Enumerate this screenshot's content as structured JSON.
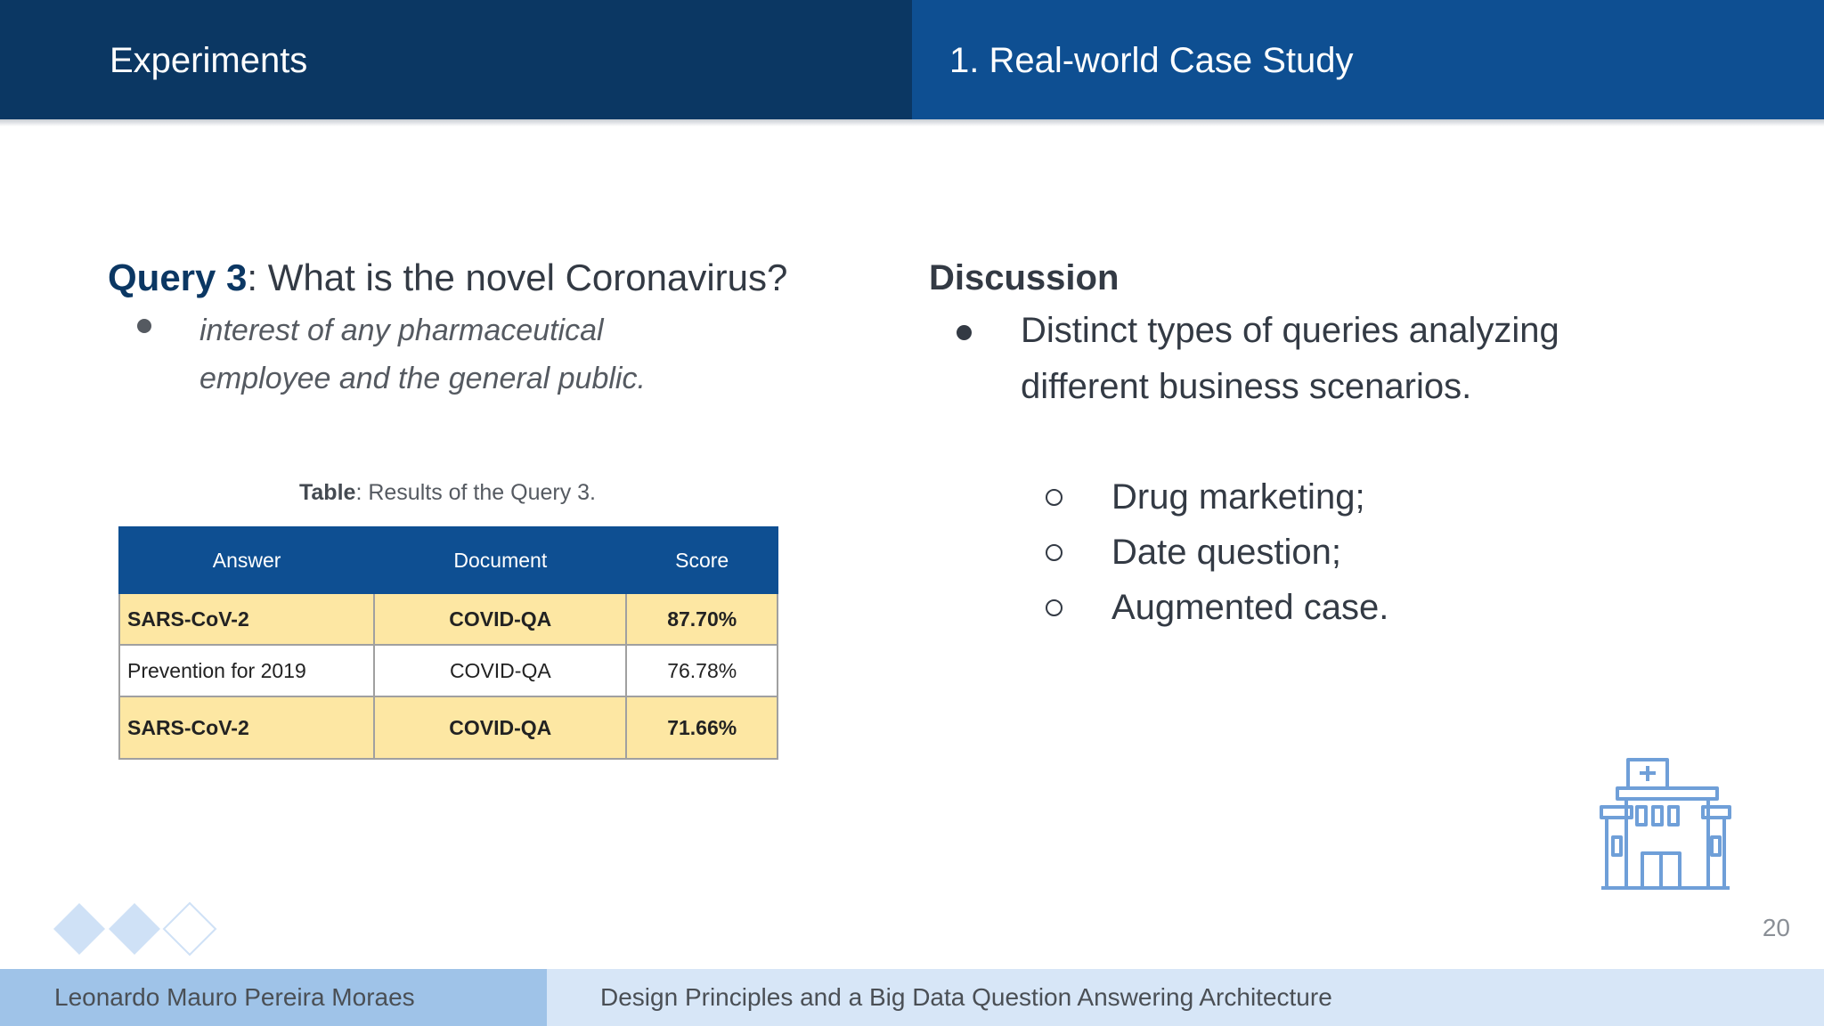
{
  "header": {
    "section_title": "Experiments",
    "slide_title": "1. Real-world Case Study"
  },
  "query": {
    "label": "Query 3",
    "text": ": What is the novel Coronavirus?",
    "bullet": "interest of any pharmaceutical employee and the general public."
  },
  "table": {
    "caption_bold": "Table",
    "caption_rest": ": Results of the Query 3.",
    "headers": [
      "Answer",
      "Document",
      "Score"
    ],
    "rows": [
      {
        "answer": "SARS-CoV-2",
        "document": "COVID-QA",
        "score": "87.70%",
        "highlighted": true
      },
      {
        "answer": "Prevention for 2019",
        "document": "COVID-QA",
        "score": "76.78%",
        "highlighted": false
      },
      {
        "answer": "SARS-CoV-2",
        "document": "COVID-QA",
        "score": "71.66%",
        "highlighted": true
      }
    ],
    "colors": {
      "header": "#0e4f92",
      "highlight": "#fde7a3"
    }
  },
  "discussion": {
    "heading": "Discussion",
    "bullet": "Distinct types of queries analyzing different business scenarios.",
    "sub_items": [
      "Drug marketing;",
      "Date question;",
      "Augmented case."
    ]
  },
  "icons": {
    "decoration": "diamond-pattern-icon",
    "illustration": "hospital-building-icon"
  },
  "page_number": "20",
  "footer": {
    "author": "Leonardo Mauro Pereira Moraes",
    "talk_title": "Design Principles and a Big Data Question Answering Architecture"
  },
  "colors": {
    "header_dark": "#0b3763",
    "header_blue": "#0e4f92",
    "footer_left": "#9fc3e8",
    "footer_right": "#d7e6f7"
  }
}
